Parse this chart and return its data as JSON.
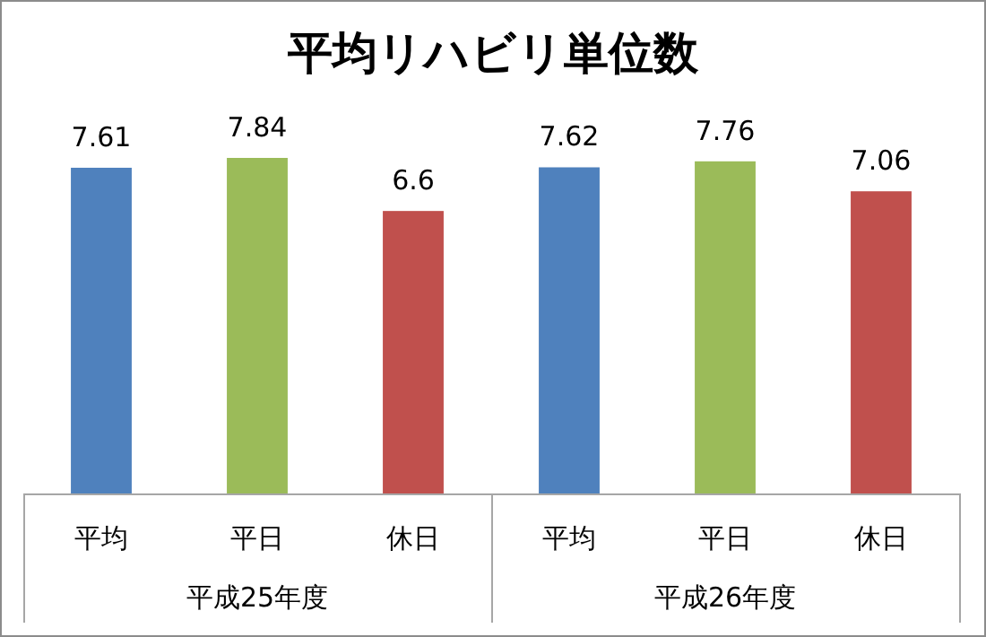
{
  "chart_data": {
    "type": "bar",
    "title": "平均リハビリ単位数",
    "categories": [
      "平均",
      "平日",
      "休日",
      "平均",
      "平日",
      "休日"
    ],
    "values": [
      7.61,
      7.84,
      6.6,
      7.62,
      7.76,
      7.06
    ],
    "colors": [
      "#4f81bd",
      "#9bbb59",
      "#c0504d",
      "#4f81bd",
      "#9bbb59",
      "#c0504d"
    ],
    "tick_labels": "x",
    "data_labels": true,
    "annotations": [
      "平成25年度",
      "平成26年度"
    ]
  }
}
